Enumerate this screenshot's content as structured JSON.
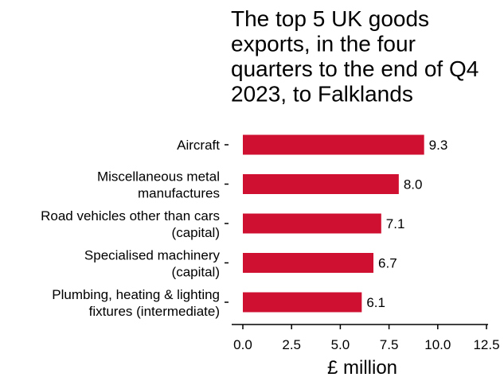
{
  "chart_data": {
    "type": "bar",
    "orientation": "horizontal",
    "title": "The top 5 UK goods exports, in the four quarters to the end of Q4 2023, to Falklands",
    "title_lines": [
      "The top 5 UK goods",
      "exports, in the four",
      "quarters to the end of Q4",
      "2023, to Falklands"
    ],
    "categories": [
      "Aircraft",
      "Miscellaneous metal manufactures",
      "Road vehicles other than cars (capital)",
      "Specialised machinery (capital)",
      "Plumbing, heating & lighting fixtures (intermediate)"
    ],
    "category_lines": [
      [
        "Aircraft"
      ],
      [
        "Miscellaneous metal",
        "manufactures"
      ],
      [
        "Road vehicles other than cars",
        "(capital)"
      ],
      [
        "Specialised machinery",
        "(capital)"
      ],
      [
        "Plumbing, heating & lighting",
        "fixtures (intermediate)"
      ]
    ],
    "values": [
      9.3,
      8.0,
      7.1,
      6.7,
      6.1
    ],
    "value_labels": [
      "9.3",
      "8.0",
      "7.1",
      "6.7",
      "6.1"
    ],
    "xlabel": "£ million",
    "ylabel": "",
    "xlim": [
      0,
      12.5
    ],
    "xticks": [
      0,
      2.5,
      5,
      7.5,
      10,
      12.5
    ],
    "xtick_labels": [
      "0.0",
      "2.5",
      "5.0",
      "7.5",
      "10.0",
      "12.5"
    ],
    "bar_color": "#cf1030",
    "grid": false,
    "legend": "none"
  }
}
